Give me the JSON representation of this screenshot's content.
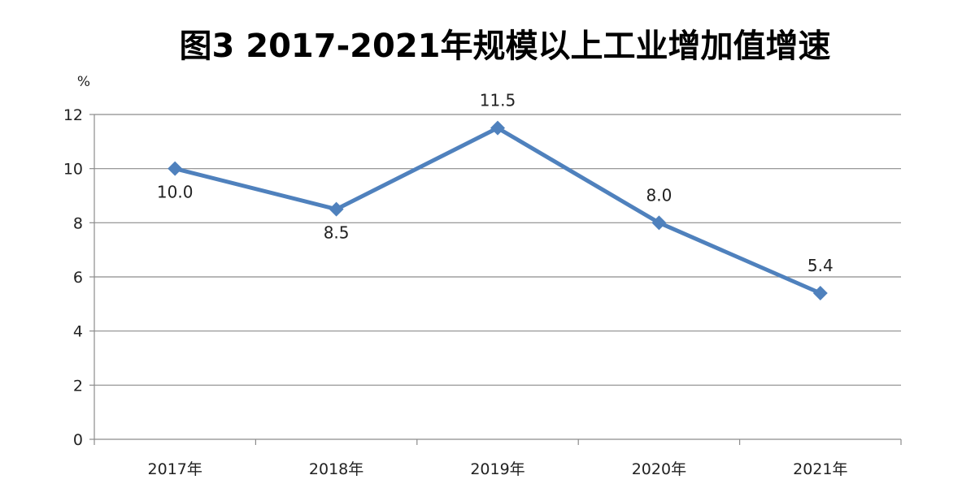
{
  "chart_data": {
    "type": "line",
    "title": "图3  2017-2021年规模以上工业增加值增速",
    "ylabel": "%",
    "xlabel": "",
    "categories": [
      "2017年",
      "2018年",
      "2019年",
      "2020年",
      "2021年"
    ],
    "series": [
      {
        "values": [
          10.0,
          8.5,
          11.5,
          8.0,
          5.4
        ],
        "labels": [
          "10.0",
          "8.5",
          "11.5",
          "8.0",
          "5.4"
        ],
        "label_positions": [
          "below",
          "below",
          "above",
          "above",
          "above"
        ]
      }
    ],
    "ylim": [
      0,
      12
    ],
    "yticks": [
      0,
      2,
      4,
      6,
      8,
      10,
      12
    ],
    "grid": true,
    "legend": "none",
    "line_color": "#4f81bd",
    "marker": "diamond"
  }
}
